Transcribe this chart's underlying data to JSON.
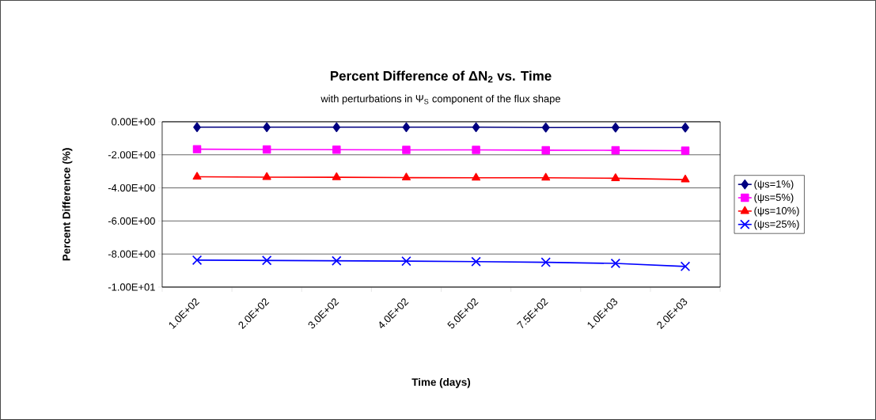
{
  "chart_data": {
    "type": "line",
    "title": "Percent Difference of ΔN$_{2}$ vs. Time",
    "subtitle": "with perturbations in Ψ$_{S}$ component of the flux shape",
    "xlabel": "Time (days)",
    "ylabel": "Percent Difference (%)",
    "categories": [
      "1.0E+02",
      "2.0E+02",
      "3.0E+02",
      "4.0E+02",
      "5.0E+02",
      "7.5E+02",
      "1.0E+03",
      "2.0E+03"
    ],
    "series": [
      {
        "name": "(ψs=1%)",
        "color": "#000080",
        "marker": "diamond",
        "values": [
          -0.33,
          -0.33,
          -0.33,
          -0.33,
          -0.33,
          -0.35,
          -0.35,
          -0.35
        ]
      },
      {
        "name": "(ψs=5%)",
        "color": "#ff00ff",
        "marker": "square",
        "values": [
          -1.66,
          -1.68,
          -1.69,
          -1.7,
          -1.7,
          -1.72,
          -1.73,
          -1.75
        ]
      },
      {
        "name": "(ψs=10%)",
        "color": "#ff0000",
        "marker": "triangle",
        "values": [
          -3.33,
          -3.35,
          -3.36,
          -3.38,
          -3.39,
          -3.39,
          -3.42,
          -3.5
        ]
      },
      {
        "name": "(ψs=25%)",
        "color": "#0000ff",
        "marker": "cross",
        "values": [
          -8.37,
          -8.39,
          -8.41,
          -8.43,
          -8.46,
          -8.5,
          -8.57,
          -8.75
        ]
      }
    ],
    "ylim": [
      -10,
      0
    ],
    "yticks": [
      {
        "value": 0,
        "label": "0.00E+00"
      },
      {
        "value": -2,
        "label": "-2.00E+00"
      },
      {
        "value": -4,
        "label": "-4.00E+00"
      },
      {
        "value": -6,
        "label": "-6.00E+00"
      },
      {
        "value": -8,
        "label": "-8.00E+00"
      },
      {
        "value": -10,
        "label": "-1.00E+01"
      }
    ],
    "grid": "y",
    "legend": "right",
    "line_style": "solid"
  }
}
